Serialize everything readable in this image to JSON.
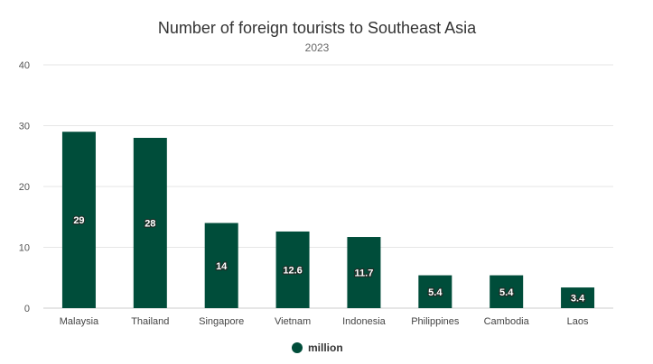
{
  "chart_data": {
    "type": "bar",
    "title": "Number of foreign tourists to Southeast Asia",
    "subtitle": "2023",
    "categories": [
      "Malaysia",
      "Thailand",
      "Singapore",
      "Vietnam",
      "Indonesia",
      "Philippines",
      "Cambodia",
      "Laos"
    ],
    "series": [
      {
        "name": "million",
        "values": [
          29,
          28,
          14,
          12.6,
          11.7,
          5.4,
          5.4,
          3.4
        ],
        "color": "#004d3a"
      }
    ],
    "data_labels": [
      "29",
      "28",
      "14",
      "12.6",
      "11.7",
      "5.4",
      "5.4",
      "3.4"
    ],
    "ylim": [
      0,
      40
    ],
    "yticks": [
      0,
      10,
      20,
      30,
      40
    ],
    "grid": true,
    "legend": "bottom-center"
  }
}
